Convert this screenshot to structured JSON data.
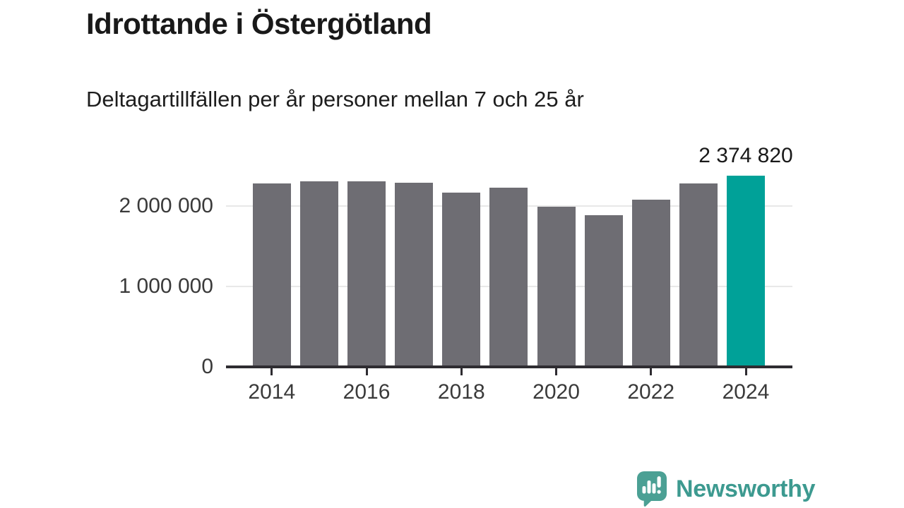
{
  "title": "Idrottande i Östergötland",
  "subtitle": "Deltagartillfällen per år personer mellan 7 och 25 år",
  "chart_data": {
    "type": "bar",
    "title": "Idrottande i Östergötland",
    "subtitle": "Deltagartillfällen per år personer mellan 7 och 25 år",
    "categories": [
      2014,
      2015,
      2016,
      2017,
      2018,
      2019,
      2020,
      2021,
      2022,
      2023,
      2024
    ],
    "values": [
      2285000,
      2305000,
      2305000,
      2290000,
      2165000,
      2225000,
      1990000,
      1890000,
      2080000,
      2280000,
      2374820
    ],
    "highlight_index": 10,
    "highlight_value_label": "2 374 820",
    "y_ticks": [
      {
        "label": "2 000 000",
        "value": 2000000
      },
      {
        "label": "1 000 000",
        "value": 1000000
      },
      {
        "label": "0",
        "value": 0
      }
    ],
    "x_ticks": [
      {
        "label": "2014",
        "index": 0
      },
      {
        "label": "2016",
        "index": 2
      },
      {
        "label": "2018",
        "index": 4
      },
      {
        "label": "2020",
        "index": 6
      },
      {
        "label": "2022",
        "index": 8
      },
      {
        "label": "2024",
        "index": 10
      }
    ],
    "ylim": [
      0,
      2450000
    ],
    "grid": "horizontal",
    "legend": "none",
    "colors": {
      "bar": "#6e6d73",
      "highlight_bar": "#00a198",
      "gridline": "#e8e8e8",
      "axis": "#2e2c31",
      "tick_label": "#3a3a3a",
      "value_label": "#191919"
    }
  },
  "footer": {
    "brand": "Newsworthy",
    "logo_icon": "bar-chart-speech-bubble-icon",
    "brand_text_color": "#3d9a90",
    "logo_color": "#4ba094"
  }
}
